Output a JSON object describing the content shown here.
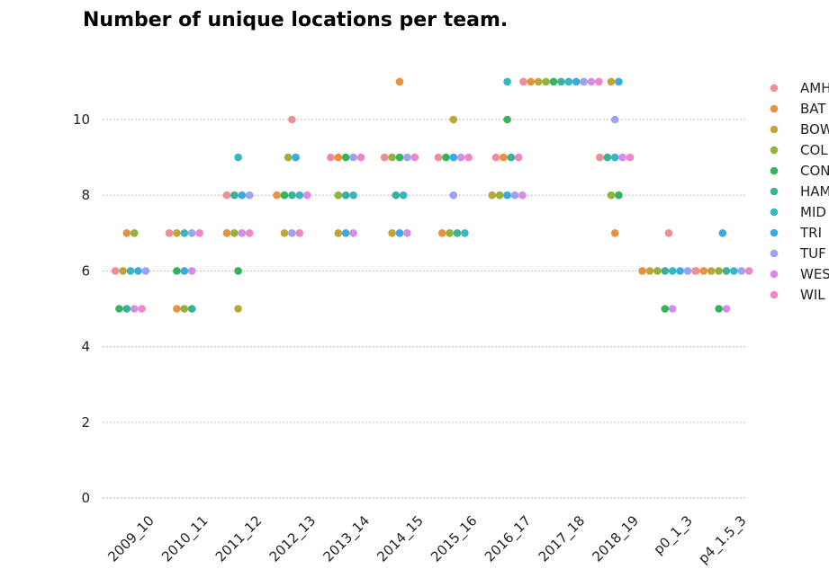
{
  "chart_data": {
    "type": "scatter",
    "title": "Number of unique locations per team.",
    "xlabel": "",
    "ylabel": "",
    "ylim": [
      0,
      11.5
    ],
    "yticks": [
      0,
      2,
      4,
      6,
      8,
      10
    ],
    "grid": "horizontal dotted",
    "legend_placement": "right",
    "categories": [
      "2009_10",
      "2010_11",
      "2011_12",
      "2012_13",
      "2013_14",
      "2014_15",
      "2015_16",
      "2016_17",
      "2017_18",
      "2018_19",
      "p0_1_3",
      "p4_1.5_3"
    ],
    "series": [
      {
        "name": "AMH",
        "color": "#f08e97",
        "values": [
          6,
          7,
          8,
          10,
          9,
          9,
          9,
          9,
          11,
          9,
          7,
          6
        ]
      },
      {
        "name": "BAT",
        "color": "#e8913f",
        "values": [
          7,
          5,
          7,
          8,
          9,
          11,
          7,
          9,
          11,
          7,
          6,
          6
        ]
      },
      {
        "name": "BOW",
        "color": "#bda637",
        "values": [
          6,
          7,
          5,
          7,
          7,
          7,
          10,
          8,
          11,
          11,
          6,
          6
        ]
      },
      {
        "name": "COL",
        "color": "#93b23a",
        "values": [
          7,
          5,
          7,
          9,
          8,
          9,
          7,
          8,
          11,
          8,
          6,
          6
        ]
      },
      {
        "name": "CON",
        "color": "#34b35e",
        "values": [
          5,
          6,
          6,
          8,
          9,
          9,
          9,
          10,
          11,
          8,
          5,
          5
        ]
      },
      {
        "name": "HAM",
        "color": "#38b39a",
        "values": [
          5,
          5,
          8,
          8,
          8,
          8,
          7,
          9,
          11,
          9,
          6,
          6
        ]
      },
      {
        "name": "MID",
        "color": "#38b5c2",
        "values": [
          6,
          7,
          9,
          8,
          8,
          8,
          7,
          11,
          11,
          9,
          6,
          6
        ]
      },
      {
        "name": "TRI",
        "color": "#3ba9e4",
        "values": [
          6,
          6,
          8,
          9,
          7,
          7,
          9,
          8,
          11,
          11,
          6,
          7
        ]
      },
      {
        "name": "TUF",
        "color": "#9da3f0",
        "values": [
          6,
          7,
          8,
          7,
          9,
          9,
          8,
          8,
          11,
          10,
          6,
          6
        ]
      },
      {
        "name": "WES",
        "color": "#d98be8",
        "values": [
          5,
          6,
          7,
          8,
          7,
          7,
          9,
          8,
          11,
          9,
          5,
          5
        ]
      },
      {
        "name": "WIL",
        "color": "#ef86c6",
        "values": [
          5,
          7,
          7,
          7,
          9,
          9,
          9,
          9,
          11,
          9,
          6,
          6
        ]
      }
    ]
  }
}
